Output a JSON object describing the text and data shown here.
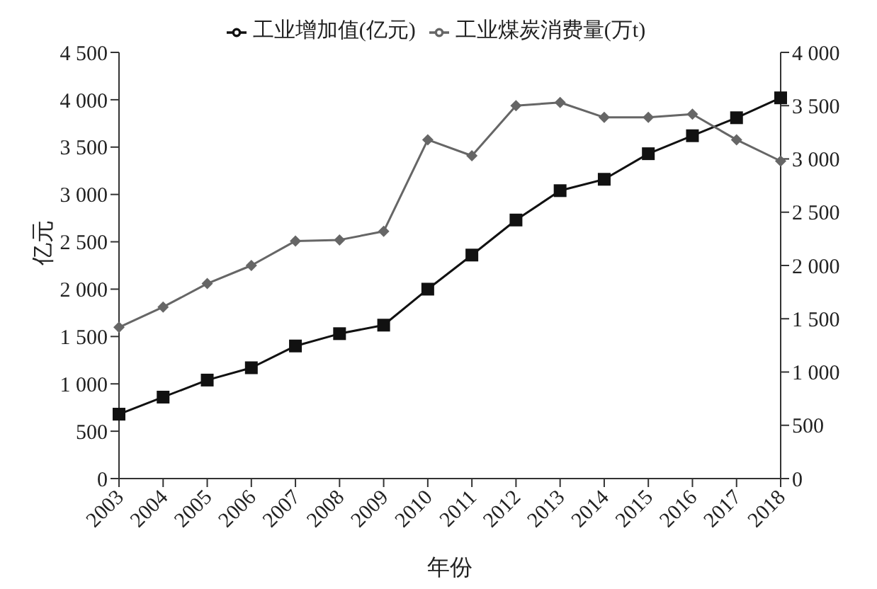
{
  "chart_data": {
    "type": "line",
    "xlabel": "年份",
    "ylabel": "亿元",
    "categories": [
      "2003",
      "2004",
      "2005",
      "2006",
      "2007",
      "2008",
      "2009",
      "2010",
      "2011",
      "2012",
      "2013",
      "2014",
      "2015",
      "2016",
      "2017",
      "2018"
    ],
    "series": [
      {
        "name": "工业增加值(亿元)",
        "color": "#111111",
        "marker": "square",
        "values": [
          680,
          860,
          1040,
          1170,
          1400,
          1530,
          1620,
          2000,
          2360,
          2730,
          3040,
          3160,
          3430,
          3620,
          3810,
          4020
        ]
      },
      {
        "name": "工业煤炭消费量(万t)",
        "color": "#666666",
        "marker": "diamond",
        "axis": "y2",
        "values": [
          1420,
          1610,
          1830,
          2000,
          2230,
          2240,
          2320,
          3180,
          3030,
          3500,
          3530,
          3390,
          3390,
          3420,
          3180,
          2980
        ]
      }
    ],
    "ylim": [
      0,
      4500
    ],
    "yticks": [
      0,
      500,
      {
        "value": 1000,
        "label": "1 000"
      },
      {
        "value": 1500,
        "label": "1 500"
      },
      {
        "value": 2000,
        "label": "2 000"
      },
      {
        "value": 2500,
        "label": "2 500"
      },
      {
        "value": 3000,
        "label": "3 000"
      },
      {
        "value": 3500,
        "label": "3 500"
      },
      {
        "value": 4000,
        "label": "4 000"
      },
      {
        "value": 4500,
        "label": "4 500"
      }
    ],
    "y2lim": [
      0,
      4000
    ],
    "y2ticks": [
      0,
      500,
      {
        "value": 1000,
        "label": "1 000"
      },
      {
        "value": 1500,
        "label": "1 500"
      },
      {
        "value": 2000,
        "label": "2 000"
      },
      {
        "value": 2500,
        "label": "2 500"
      },
      {
        "value": 3000,
        "label": "3 000"
      },
      {
        "value": 3500,
        "label": "3 500"
      },
      {
        "value": 4000,
        "label": "4 000"
      }
    ],
    "legend": "top",
    "grid": false
  }
}
